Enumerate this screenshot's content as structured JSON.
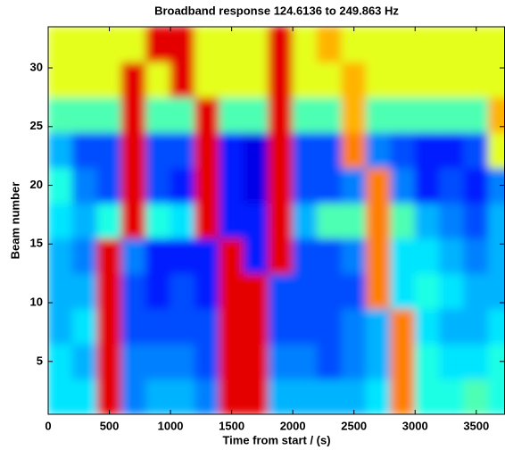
{
  "chart_data": {
    "type": "heatmap",
    "title": "Broadband response 124.6136 to 249.863 Hz",
    "x_label": "Time from start / (s)",
    "y_label": "Beam number",
    "colormap": "jet",
    "zlim": [
      0,
      1
    ],
    "xlim": [
      0,
      3735
    ],
    "ylim": [
      0.5,
      33.5
    ],
    "xticks": [
      0,
      500,
      1000,
      1500,
      2000,
      2500,
      3000,
      3500
    ],
    "yticks": [
      5,
      10,
      15,
      20,
      25,
      30
    ],
    "x": [
      100,
      300,
      500,
      700,
      900,
      1100,
      1300,
      1500,
      1700,
      1900,
      2100,
      2300,
      2500,
      2700,
      2900,
      3100,
      3300,
      3500,
      3700
    ],
    "y": [
      2,
      5,
      8,
      11,
      14,
      17,
      20,
      23,
      26,
      29,
      32
    ],
    "z": [
      [
        0.35,
        0.35,
        0.9,
        0.25,
        0.3,
        0.3,
        0.25,
        0.9,
        0.9,
        0.3,
        0.3,
        0.3,
        0.3,
        0.35,
        0.75,
        0.4,
        0.4,
        0.45,
        0.4
      ],
      [
        0.35,
        0.3,
        0.9,
        0.25,
        0.25,
        0.25,
        0.2,
        0.9,
        0.9,
        0.25,
        0.25,
        0.2,
        0.25,
        0.3,
        0.75,
        0.4,
        0.35,
        0.35,
        0.4
      ],
      [
        0.3,
        0.35,
        0.9,
        0.2,
        0.2,
        0.2,
        0.2,
        0.9,
        0.9,
        0.2,
        0.2,
        0.2,
        0.25,
        0.3,
        0.75,
        0.35,
        0.3,
        0.3,
        0.35
      ],
      [
        0.3,
        0.3,
        0.9,
        0.2,
        0.15,
        0.2,
        0.15,
        0.9,
        0.9,
        0.2,
        0.2,
        0.2,
        0.2,
        0.75,
        0.35,
        0.4,
        0.35,
        0.3,
        0.3
      ],
      [
        0.3,
        0.25,
        0.9,
        0.25,
        0.15,
        0.15,
        0.15,
        0.9,
        0.15,
        0.9,
        0.2,
        0.2,
        0.25,
        0.75,
        0.35,
        0.35,
        0.3,
        0.25,
        0.3
      ],
      [
        0.35,
        0.3,
        0.4,
        0.9,
        0.4,
        0.35,
        0.9,
        0.15,
        0.15,
        0.9,
        0.3,
        0.45,
        0.45,
        0.75,
        0.45,
        0.3,
        0.25,
        0.2,
        0.3
      ],
      [
        0.4,
        0.25,
        0.2,
        0.9,
        0.2,
        0.15,
        0.9,
        0.15,
        0.1,
        0.9,
        0.2,
        0.2,
        0.25,
        0.75,
        0.25,
        0.15,
        0.2,
        0.15,
        0.25
      ],
      [
        0.3,
        0.2,
        0.2,
        0.9,
        0.2,
        0.2,
        0.9,
        0.15,
        0.1,
        0.9,
        0.2,
        0.2,
        0.75,
        0.25,
        0.2,
        0.15,
        0.15,
        0.2,
        0.6
      ],
      [
        0.45,
        0.45,
        0.45,
        0.9,
        0.45,
        0.45,
        0.9,
        0.45,
        0.45,
        0.9,
        0.45,
        0.45,
        0.7,
        0.45,
        0.45,
        0.45,
        0.45,
        0.45,
        0.7
      ],
      [
        0.6,
        0.6,
        0.6,
        0.9,
        0.6,
        0.9,
        0.6,
        0.6,
        0.6,
        0.9,
        0.6,
        0.6,
        0.7,
        0.6,
        0.6,
        0.6,
        0.6,
        0.6,
        0.6
      ],
      [
        0.6,
        0.6,
        0.6,
        0.6,
        0.9,
        0.9,
        0.6,
        0.6,
        0.6,
        0.9,
        0.6,
        0.7,
        0.6,
        0.6,
        0.6,
        0.6,
        0.6,
        0.6,
        0.6
      ]
    ]
  }
}
